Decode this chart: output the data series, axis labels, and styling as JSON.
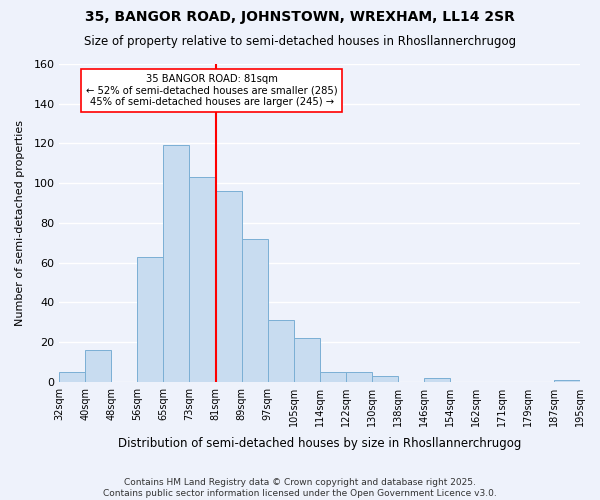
{
  "title": "35, BANGOR ROAD, JOHNSTOWN, WREXHAM, LL14 2SR",
  "subtitle": "Size of property relative to semi-detached houses in Rhosllannerchrugog",
  "xlabel": "Distribution of semi-detached houses by size in Rhosllannerchrugog",
  "ylabel": "Number of semi-detached properties",
  "bin_labels": [
    "32sqm",
    "40sqm",
    "48sqm",
    "56sqm",
    "65sqm",
    "73sqm",
    "81sqm",
    "89sqm",
    "97sqm",
    "105sqm",
    "114sqm",
    "122sqm",
    "130sqm",
    "138sqm",
    "146sqm",
    "154sqm",
    "162sqm",
    "171sqm",
    "179sqm",
    "187sqm",
    "195sqm"
  ],
  "bar_values": [
    5,
    16,
    0,
    63,
    119,
    103,
    96,
    72,
    31,
    22,
    5,
    5,
    3,
    0,
    2,
    0,
    0,
    0,
    0,
    1
  ],
  "bar_color": "#c8dcf0",
  "bar_edge_color": "#7bafd4",
  "vline_label_index": 6,
  "vline_color": "red",
  "annotation_title": "35 BANGOR ROAD: 81sqm",
  "annotation_line1": "← 52% of semi-detached houses are smaller (285)",
  "annotation_line2": "45% of semi-detached houses are larger (245) →",
  "ylim": [
    0,
    160
  ],
  "yticks": [
    0,
    20,
    40,
    60,
    80,
    100,
    120,
    140,
    160
  ],
  "footnote1": "Contains HM Land Registry data © Crown copyright and database right 2025.",
  "footnote2": "Contains public sector information licensed under the Open Government Licence v3.0.",
  "bg_color": "#eef2fb",
  "grid_color": "#ffffff"
}
